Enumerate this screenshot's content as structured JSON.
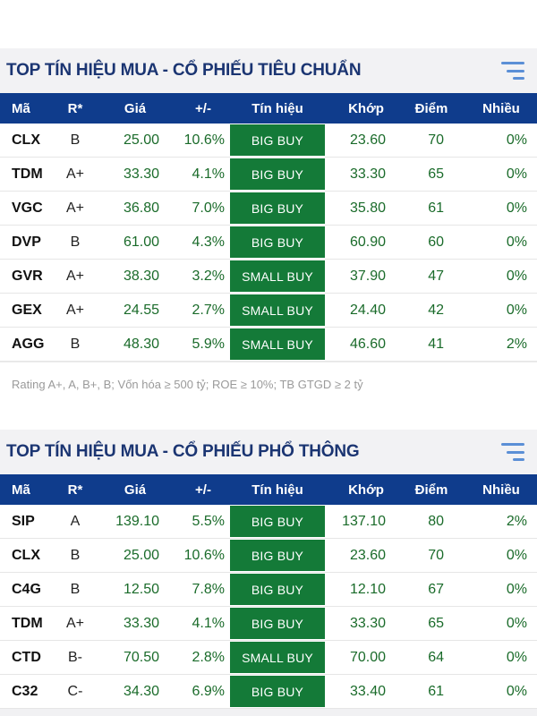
{
  "sections": [
    {
      "title": "TOP TÍN HIỆU MUA - CỔ PHIẾU TIÊU CHUẨN",
      "columns": [
        "Mã",
        "R*",
        "Giá",
        "+/-",
        "Tín hiệu",
        "Khớp",
        "Điểm",
        "Nhiều"
      ],
      "rows": [
        {
          "ma": "CLX",
          "r": "B",
          "gia": "25.00",
          "pm": "10.6%",
          "signal": "BIG BUY",
          "khop": "23.60",
          "diem": "70",
          "nhieu": "0%"
        },
        {
          "ma": "TDM",
          "r": "A+",
          "gia": "33.30",
          "pm": "4.1%",
          "signal": "BIG BUY",
          "khop": "33.30",
          "diem": "65",
          "nhieu": "0%"
        },
        {
          "ma": "VGC",
          "r": "A+",
          "gia": "36.80",
          "pm": "7.0%",
          "signal": "BIG BUY",
          "khop": "35.80",
          "diem": "61",
          "nhieu": "0%"
        },
        {
          "ma": "DVP",
          "r": "B",
          "gia": "61.00",
          "pm": "4.3%",
          "signal": "BIG BUY",
          "khop": "60.90",
          "diem": "60",
          "nhieu": "0%"
        },
        {
          "ma": "GVR",
          "r": "A+",
          "gia": "38.30",
          "pm": "3.2%",
          "signal": "SMALL BUY",
          "khop": "37.90",
          "diem": "47",
          "nhieu": "0%"
        },
        {
          "ma": "GEX",
          "r": "A+",
          "gia": "24.55",
          "pm": "2.7%",
          "signal": "SMALL BUY",
          "khop": "24.40",
          "diem": "42",
          "nhieu": "0%"
        },
        {
          "ma": "AGG",
          "r": "B",
          "gia": "48.30",
          "pm": "5.9%",
          "signal": "SMALL BUY",
          "khop": "46.60",
          "diem": "41",
          "nhieu": "2%"
        }
      ],
      "footnote": "Rating A+, A, B+, B; Vốn hóa ≥ 500 tỷ; ROE ≥ 10%; TB GTGD ≥ 2 tỷ"
    },
    {
      "title": "TOP TÍN HIỆU MUA - CỔ PHIẾU PHỔ THÔNG",
      "columns": [
        "Mã",
        "R*",
        "Giá",
        "+/-",
        "Tín hiệu",
        "Khớp",
        "Điểm",
        "Nhiều"
      ],
      "rows": [
        {
          "ma": "SIP",
          "r": "A",
          "gia": "139.10",
          "pm": "5.5%",
          "signal": "BIG BUY",
          "khop": "137.10",
          "diem": "80",
          "nhieu": "2%"
        },
        {
          "ma": "CLX",
          "r": "B",
          "gia": "25.00",
          "pm": "10.6%",
          "signal": "BIG BUY",
          "khop": "23.60",
          "diem": "70",
          "nhieu": "0%"
        },
        {
          "ma": "C4G",
          "r": "B",
          "gia": "12.50",
          "pm": "7.8%",
          "signal": "BIG BUY",
          "khop": "12.10",
          "diem": "67",
          "nhieu": "0%"
        },
        {
          "ma": "TDM",
          "r": "A+",
          "gia": "33.30",
          "pm": "4.1%",
          "signal": "BIG BUY",
          "khop": "33.30",
          "diem": "65",
          "nhieu": "0%"
        },
        {
          "ma": "CTD",
          "r": "B-",
          "gia": "70.50",
          "pm": "2.8%",
          "signal": "SMALL BUY",
          "khop": "70.00",
          "diem": "64",
          "nhieu": "0%"
        },
        {
          "ma": "C32",
          "r": "C-",
          "gia": "34.30",
          "pm": "6.9%",
          "signal": "BIG BUY",
          "khop": "33.40",
          "diem": "61",
          "nhieu": "0%"
        }
      ]
    }
  ],
  "icons": {
    "menu": "filter-menu-icon"
  },
  "colors": {
    "title": "#1b3572",
    "header_bg": "#0f3c8c",
    "signal_bg": "#147a38",
    "value_text": "#1a6b2a"
  }
}
